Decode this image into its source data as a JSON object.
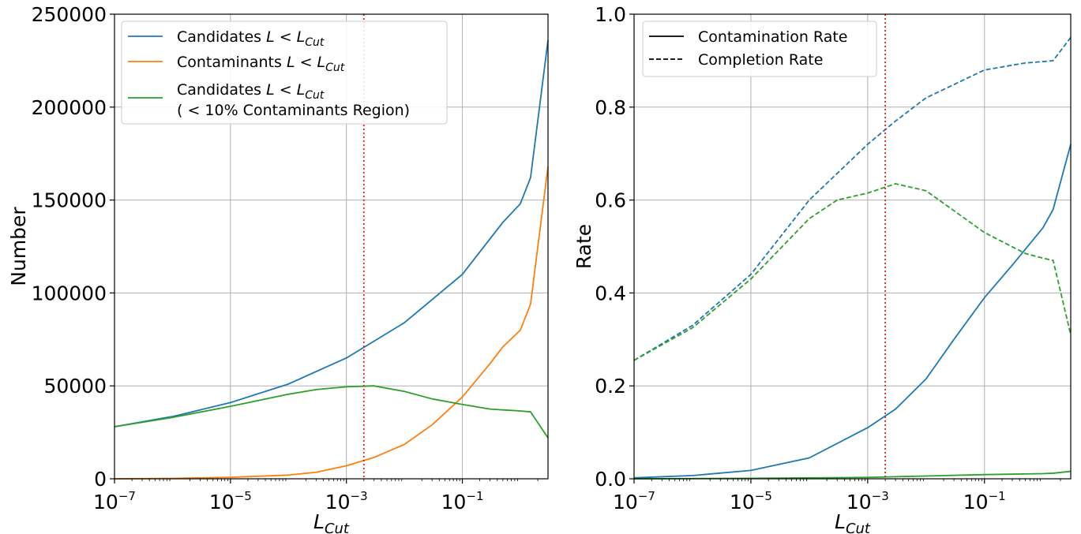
{
  "chart_data": [
    {
      "type": "line",
      "xscale": "log",
      "xlim": [
        1e-07,
        3
      ],
      "ylim": [
        0,
        250000
      ],
      "grid": true,
      "xlabel": "L_Cut",
      "ylabel": "Number",
      "legend_position": "upper-left",
      "x_ticks": [
        {
          "value": 1e-07,
          "base": "10",
          "exp": "−7"
        },
        {
          "value": 1e-05,
          "base": "10",
          "exp": "−5"
        },
        {
          "value": 0.001,
          "base": "10",
          "exp": "−3"
        },
        {
          "value": 0.1,
          "base": "10",
          "exp": "−1"
        }
      ],
      "y_ticks": [
        {
          "value": 0,
          "label": "0"
        },
        {
          "value": 50000,
          "label": "50000"
        },
        {
          "value": 100000,
          "label": "100000"
        },
        {
          "value": 150000,
          "label": "150000"
        },
        {
          "value": 200000,
          "label": "200000"
        },
        {
          "value": 250000,
          "label": "250000"
        }
      ],
      "vline": {
        "x": 0.002,
        "color": "#d62728",
        "style": "dotted"
      },
      "series": [
        {
          "name": "Candidates L < L_Cut",
          "legend": {
            "prefix": "Candidates ",
            "math": "L < L",
            "sub": "Cut"
          },
          "color": "#1f77b4",
          "dash": "solid",
          "x": [
            1e-07,
            1e-06,
            1e-05,
            0.0001,
            0.001,
            0.01,
            0.1,
            0.5,
            1.0,
            1.5,
            3
          ],
          "y": [
            28000,
            33500,
            41000,
            51000,
            65000,
            84000,
            110000,
            138000,
            148000,
            162000,
            236000
          ]
        },
        {
          "name": "Contaminants L < L_Cut",
          "legend": {
            "prefix": "Contaminants ",
            "math": "L < L",
            "sub": "Cut"
          },
          "color": "#ff7f0e",
          "dash": "solid",
          "x": [
            1e-07,
            1e-06,
            1e-05,
            0.0001,
            0.0003,
            0.001,
            0.003,
            0.01,
            0.03,
            0.1,
            0.3,
            0.5,
            1.0,
            1.5,
            3
          ],
          "y": [
            0,
            200,
            800,
            2000,
            3500,
            7000,
            11500,
            18500,
            29000,
            44000,
            62000,
            71000,
            80000,
            94000,
            168000
          ]
        },
        {
          "name": "Candidates L < L_Cut (< 10% Contaminants Region)",
          "legend": {
            "prefix": "Candidates ",
            "math": "L < L",
            "sub": "Cut",
            "line2": "( < 10% Contaminants Region)"
          },
          "color": "#2ca02c",
          "dash": "solid",
          "x": [
            1e-07,
            1e-06,
            1e-05,
            0.0001,
            0.0003,
            0.001,
            0.003,
            0.01,
            0.03,
            0.1,
            0.3,
            1.0,
            1.5,
            3
          ],
          "y": [
            28000,
            33000,
            39000,
            45500,
            48000,
            49500,
            50000,
            47000,
            43000,
            40000,
            37500,
            36500,
            36000,
            22000
          ]
        }
      ]
    },
    {
      "type": "line",
      "xscale": "log",
      "xlim": [
        1e-07,
        3
      ],
      "ylim": [
        0,
        1
      ],
      "grid": true,
      "xlabel": "L_Cut",
      "ylabel": "Rate",
      "legend_position": "upper-left",
      "x_ticks": [
        {
          "value": 1e-07,
          "base": "10",
          "exp": "−7"
        },
        {
          "value": 1e-05,
          "base": "10",
          "exp": "−5"
        },
        {
          "value": 0.001,
          "base": "10",
          "exp": "−3"
        },
        {
          "value": 0.1,
          "base": "10",
          "exp": "−1"
        }
      ],
      "y_ticks": [
        {
          "value": 0,
          "label": "0.0"
        },
        {
          "value": 0.2,
          "label": "0.2"
        },
        {
          "value": 0.4,
          "label": "0.4"
        },
        {
          "value": 0.6,
          "label": "0.6"
        },
        {
          "value": 0.8,
          "label": "0.8"
        },
        {
          "value": 1.0,
          "label": "1.0"
        }
      ],
      "vline": {
        "x": 0.002,
        "color": "#d62728",
        "style": "dotted"
      },
      "legend_entries": [
        {
          "label": "Contamination Rate",
          "color": "#000000",
          "dash": "solid"
        },
        {
          "label": "Completion Rate",
          "color": "#000000",
          "dash": "dashed"
        }
      ],
      "series": [
        {
          "name": "",
          "color": "#1f77b4",
          "dash": "dashed",
          "x": [
            1e-07,
            1e-06,
            1e-05,
            0.0001,
            0.001,
            0.003,
            0.01,
            0.1,
            0.5,
            1.0,
            1.5,
            3
          ],
          "y": [
            0.255,
            0.33,
            0.44,
            0.6,
            0.72,
            0.77,
            0.82,
            0.88,
            0.895,
            0.898,
            0.9,
            0.95
          ]
        },
        {
          "name": "",
          "color": "#2ca02c",
          "dash": "dashed",
          "x": [
            1e-07,
            1e-06,
            1e-05,
            0.0001,
            0.0003,
            0.001,
            0.003,
            0.01,
            0.1,
            0.5,
            1.0,
            1.5,
            3
          ],
          "y": [
            0.255,
            0.325,
            0.43,
            0.56,
            0.6,
            0.615,
            0.635,
            0.62,
            0.53,
            0.485,
            0.475,
            0.47,
            0.31
          ]
        },
        {
          "name": "",
          "color": "#1f77b4",
          "dash": "solid",
          "x": [
            1e-07,
            1e-06,
            1e-05,
            0.0001,
            0.001,
            0.003,
            0.01,
            0.03,
            0.1,
            0.3,
            1.0,
            1.5,
            3
          ],
          "y": [
            0.002,
            0.007,
            0.018,
            0.045,
            0.11,
            0.15,
            0.215,
            0.3,
            0.39,
            0.46,
            0.54,
            0.58,
            0.72
          ]
        },
        {
          "name": "",
          "color": "#2ca02c",
          "dash": "solid",
          "x": [
            1e-07,
            1e-05,
            0.001,
            0.01,
            0.1,
            1.0,
            1.5,
            3
          ],
          "y": [
            0,
            0.001,
            0.003,
            0.006,
            0.009,
            0.011,
            0.012,
            0.016
          ]
        }
      ]
    }
  ]
}
